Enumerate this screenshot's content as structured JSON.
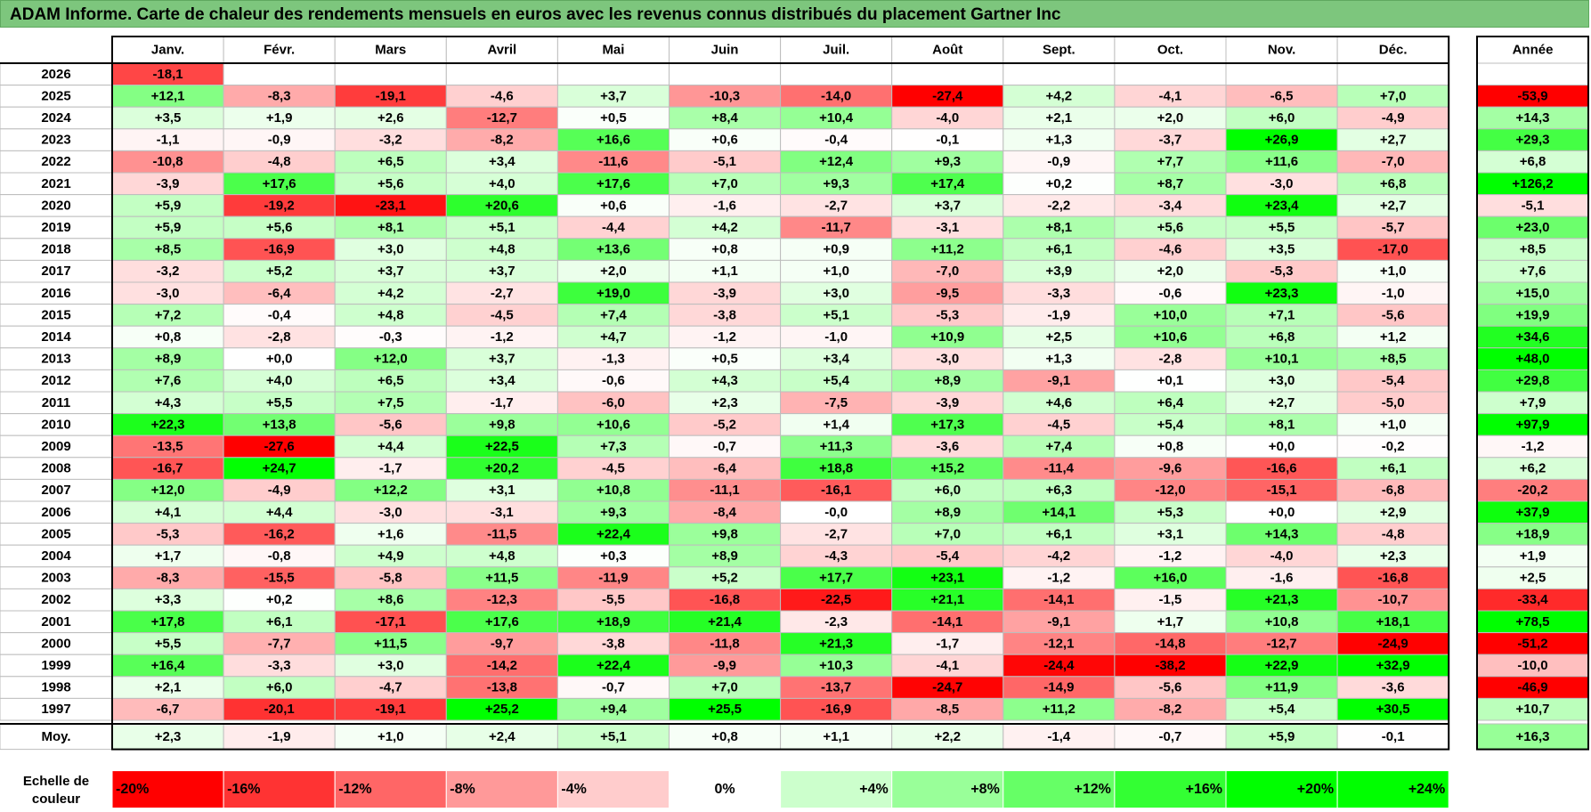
{
  "title": "ADAM Informe. Carte de chaleur des rendements mensuels en euros avec les revenus connus distribués du placement Gartner Inc",
  "chart_data": {
    "type": "heatmap",
    "months": [
      "Janv.",
      "Févr.",
      "Mars",
      "Avril",
      "Mai",
      "Juin",
      "Juil.",
      "Août",
      "Sept.",
      "Oct.",
      "Nov.",
      "Déc."
    ],
    "year_header": "Année",
    "avg_label": "Moy.",
    "rows": [
      {
        "year": "2026",
        "values": [
          "-18,1",
          null,
          null,
          null,
          null,
          null,
          null,
          null,
          null,
          null,
          null,
          null
        ],
        "annual": null
      },
      {
        "year": "2025",
        "values": [
          "+12,1",
          "-8,3",
          "-19,1",
          "-4,6",
          "+3,7",
          "-10,3",
          "-14,0",
          "-27,4",
          "+4,2",
          "-4,1",
          "-6,5",
          "+7,0"
        ],
        "annual": "-53,9"
      },
      {
        "year": "2024",
        "values": [
          "+3,5",
          "+1,9",
          "+2,6",
          "-12,7",
          "+0,5",
          "+8,4",
          "+10,4",
          "-4,0",
          "+2,1",
          "+2,0",
          "+6,0",
          "-4,9"
        ],
        "annual": "+14,3"
      },
      {
        "year": "2023",
        "values": [
          "-1,1",
          "-0,9",
          "-3,2",
          "-8,2",
          "+16,6",
          "+0,6",
          "-0,4",
          "-0,1",
          "+1,3",
          "-3,7",
          "+26,9",
          "+2,7"
        ],
        "annual": "+29,3"
      },
      {
        "year": "2022",
        "values": [
          "-10,8",
          "-4,8",
          "+6,5",
          "+3,4",
          "-11,6",
          "-5,1",
          "+12,4",
          "+9,3",
          "-0,9",
          "+7,7",
          "+11,6",
          "-7,0"
        ],
        "annual": "+6,8"
      },
      {
        "year": "2021",
        "values": [
          "-3,9",
          "+17,6",
          "+5,6",
          "+4,0",
          "+17,6",
          "+7,0",
          "+9,3",
          "+17,4",
          "+0,2",
          "+8,7",
          "-3,0",
          "+6,8"
        ],
        "annual": "+126,2"
      },
      {
        "year": "2020",
        "values": [
          "+5,9",
          "-19,2",
          "-23,1",
          "+20,6",
          "+0,6",
          "-1,6",
          "-2,7",
          "+3,7",
          "-2,2",
          "-3,4",
          "+23,4",
          "+2,7"
        ],
        "annual": "-5,1"
      },
      {
        "year": "2019",
        "values": [
          "+5,9",
          "+5,6",
          "+8,1",
          "+5,1",
          "-4,4",
          "+4,2",
          "-11,7",
          "-3,1",
          "+8,1",
          "+5,6",
          "+5,5",
          "-5,7"
        ],
        "annual": "+23,0"
      },
      {
        "year": "2018",
        "values": [
          "+8,5",
          "-16,9",
          "+3,0",
          "+4,8",
          "+13,6",
          "+0,8",
          "+0,9",
          "+11,2",
          "+6,1",
          "-4,6",
          "+3,5",
          "-17,0"
        ],
        "annual": "+8,5"
      },
      {
        "year": "2017",
        "values": [
          "-3,2",
          "+5,2",
          "+3,7",
          "+3,7",
          "+2,0",
          "+1,1",
          "+1,0",
          "-7,0",
          "+3,9",
          "+2,0",
          "-5,3",
          "+1,0"
        ],
        "annual": "+7,6"
      },
      {
        "year": "2016",
        "values": [
          "-3,0",
          "-6,4",
          "+4,2",
          "-2,7",
          "+19,0",
          "-3,9",
          "+3,0",
          "-9,5",
          "-3,3",
          "-0,6",
          "+23,3",
          "-1,0"
        ],
        "annual": "+15,0"
      },
      {
        "year": "2015",
        "values": [
          "+7,2",
          "-0,4",
          "+4,8",
          "-4,5",
          "+7,4",
          "-3,8",
          "+5,1",
          "-5,3",
          "-1,9",
          "+10,0",
          "+7,1",
          "-5,6"
        ],
        "annual": "+19,9"
      },
      {
        "year": "2014",
        "values": [
          "+0,8",
          "-2,8",
          "-0,3",
          "-1,2",
          "+4,7",
          "-1,2",
          "-1,0",
          "+10,9",
          "+2,5",
          "+10,6",
          "+6,8",
          "+1,2"
        ],
        "annual": "+34,6"
      },
      {
        "year": "2013",
        "values": [
          "+8,9",
          "+0,0",
          "+12,0",
          "+3,7",
          "-1,3",
          "+0,5",
          "+3,4",
          "-3,0",
          "+1,3",
          "-2,8",
          "+10,1",
          "+8,5"
        ],
        "annual": "+48,0"
      },
      {
        "year": "2012",
        "values": [
          "+7,6",
          "+4,0",
          "+6,5",
          "+3,4",
          "-0,6",
          "+4,3",
          "+5,4",
          "+8,9",
          "-9,1",
          "+0,1",
          "+3,0",
          "-5,4"
        ],
        "annual": "+29,8"
      },
      {
        "year": "2011",
        "values": [
          "+4,3",
          "+5,5",
          "+7,5",
          "-1,7",
          "-6,0",
          "+2,3",
          "-7,5",
          "-3,9",
          "+4,6",
          "+6,4",
          "+2,7",
          "-5,0"
        ],
        "annual": "+7,9"
      },
      {
        "year": "2010",
        "values": [
          "+22,3",
          "+13,8",
          "-5,6",
          "+9,8",
          "+10,6",
          "-5,2",
          "+1,4",
          "+17,3",
          "-4,5",
          "+5,4",
          "+8,1",
          "+1,0"
        ],
        "annual": "+97,9"
      },
      {
        "year": "2009",
        "values": [
          "-13,5",
          "-27,6",
          "+4,4",
          "+22,5",
          "+7,3",
          "-0,7",
          "+11,3",
          "-3,6",
          "+7,4",
          "+0,8",
          "+0,0",
          "-0,2"
        ],
        "annual": "-1,2"
      },
      {
        "year": "2008",
        "values": [
          "-16,7",
          "+24,7",
          "-1,7",
          "+20,2",
          "-4,5",
          "-6,4",
          "+18,8",
          "+15,2",
          "-11,4",
          "-9,6",
          "-16,6",
          "+6,1"
        ],
        "annual": "+6,2"
      },
      {
        "year": "2007",
        "values": [
          "+12,0",
          "-4,9",
          "+12,2",
          "+3,1",
          "+10,8",
          "-11,1",
          "-16,1",
          "+6,0",
          "+6,3",
          "-12,0",
          "-15,1",
          "-6,8"
        ],
        "annual": "-20,2"
      },
      {
        "year": "2006",
        "values": [
          "+4,1",
          "+4,4",
          "-3,0",
          "-3,1",
          "+9,3",
          "-8,4",
          "-0,0",
          "+8,9",
          "+14,1",
          "+5,3",
          "+0,0",
          "+2,9"
        ],
        "annual": "+37,9"
      },
      {
        "year": "2005",
        "values": [
          "-5,3",
          "-16,2",
          "+1,6",
          "-11,5",
          "+22,4",
          "+9,8",
          "-2,7",
          "+7,0",
          "+6,1",
          "+3,1",
          "+14,3",
          "-4,8"
        ],
        "annual": "+18,9"
      },
      {
        "year": "2004",
        "values": [
          "+1,7",
          "-0,8",
          "+4,9",
          "+4,8",
          "+0,3",
          "+8,9",
          "-4,3",
          "-5,4",
          "-4,2",
          "-1,2",
          "-4,0",
          "+2,3"
        ],
        "annual": "+1,9"
      },
      {
        "year": "2003",
        "values": [
          "-8,3",
          "-15,5",
          "-5,8",
          "+11,5",
          "-11,9",
          "+5,2",
          "+17,7",
          "+23,1",
          "-1,2",
          "+16,0",
          "-1,6",
          "-16,8"
        ],
        "annual": "+2,5"
      },
      {
        "year": "2002",
        "values": [
          "+3,3",
          "+0,2",
          "+8,6",
          "-12,3",
          "-5,5",
          "-16,8",
          "-22,5",
          "+21,1",
          "-14,1",
          "-1,5",
          "+21,3",
          "-10,7"
        ],
        "annual": "-33,4"
      },
      {
        "year": "2001",
        "values": [
          "+17,8",
          "+6,1",
          "-17,1",
          "+17,6",
          "+18,9",
          "+21,4",
          "-2,3",
          "-14,1",
          "-9,1",
          "+1,7",
          "+10,8",
          "+18,1"
        ],
        "annual": "+78,5"
      },
      {
        "year": "2000",
        "values": [
          "+5,5",
          "-7,7",
          "+11,5",
          "-9,7",
          "-3,8",
          "-11,8",
          "+21,3",
          "-1,7",
          "-12,1",
          "-14,8",
          "-12,7",
          "-24,9"
        ],
        "annual": "-51,2"
      },
      {
        "year": "1999",
        "values": [
          "+16,4",
          "-3,3",
          "+3,0",
          "-14,2",
          "+22,4",
          "-9,9",
          "+10,3",
          "-4,1",
          "-24,4",
          "-38,2",
          "+22,9",
          "+32,9"
        ],
        "annual": "-10,0"
      },
      {
        "year": "1998",
        "values": [
          "+2,1",
          "+6,0",
          "-4,7",
          "-13,8",
          "-0,7",
          "+7,0",
          "-13,7",
          "-24,7",
          "-14,9",
          "-5,6",
          "+11,9",
          "-3,6"
        ],
        "annual": "-46,9"
      },
      {
        "year": "1997",
        "values": [
          "-6,7",
          "-20,1",
          "-19,1",
          "+25,2",
          "+9,4",
          "+25,5",
          "-16,9",
          "-8,5",
          "+11,2",
          "-8,2",
          "+5,4",
          "+30,5"
        ],
        "annual": "+10,7"
      }
    ],
    "averages": [
      "+2,3",
      "-1,9",
      "+1,0",
      "+2,4",
      "+5,1",
      "+0,8",
      "+1,1",
      "+2,2",
      "-1,4",
      "-0,7",
      "+5,9",
      "-0,1"
    ],
    "avg_annual": "+16,3",
    "legend_label": [
      "Echelle de",
      "couleur"
    ],
    "scale": [
      {
        "label": "-20%",
        "value": -20
      },
      {
        "label": "-16%",
        "value": -16
      },
      {
        "label": "-12%",
        "value": -12
      },
      {
        "label": "-8%",
        "value": -8
      },
      {
        "label": "-4%",
        "value": -4
      },
      {
        "label": "0%",
        "value": 0
      },
      {
        "label": "+4%",
        "value": 4
      },
      {
        "label": "+8%",
        "value": 8
      },
      {
        "label": "+12%",
        "value": 12
      },
      {
        "label": "+16%",
        "value": 16
      },
      {
        "label": "+20%",
        "value": 20
      },
      {
        "label": "+24%",
        "value": 24
      }
    ]
  }
}
